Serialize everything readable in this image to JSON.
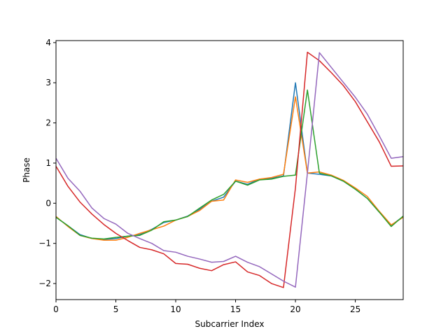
{
  "chart_data": {
    "type": "line",
    "title": "",
    "xlabel": "Subcarrier Index",
    "ylabel": "Phase",
    "xlim": [
      0,
      29
    ],
    "ylim": [
      -2.4,
      4.05
    ],
    "xticks": [
      0,
      5,
      10,
      15,
      20,
      25
    ],
    "yticks": [
      -2,
      -1,
      0,
      1,
      2,
      3,
      4
    ],
    "grid": false,
    "legend": "none",
    "x": [
      0,
      1,
      2,
      3,
      4,
      5,
      6,
      7,
      8,
      9,
      10,
      11,
      12,
      13,
      14,
      15,
      16,
      17,
      18,
      19,
      20,
      21,
      22,
      23,
      24,
      25,
      26,
      27,
      28,
      29
    ],
    "series": [
      {
        "color": "#1f77b4",
        "values": [
          -0.35,
          -0.56,
          -0.78,
          -0.88,
          -0.9,
          -0.88,
          -0.82,
          -0.78,
          -0.65,
          -0.48,
          -0.42,
          -0.32,
          -0.15,
          0.05,
          0.15,
          0.55,
          0.47,
          0.6,
          0.62,
          0.68,
          3.0,
          0.75,
          0.72,
          0.68,
          0.55,
          0.35,
          0.12,
          -0.22,
          -0.55,
          -0.33
        ]
      },
      {
        "color": "#ff7f0e",
        "values": [
          -0.33,
          -0.58,
          -0.8,
          -0.88,
          -0.92,
          -0.92,
          -0.85,
          -0.75,
          -0.66,
          -0.57,
          -0.42,
          -0.33,
          -0.18,
          0.05,
          0.08,
          0.58,
          0.52,
          0.6,
          0.64,
          0.72,
          2.65,
          0.75,
          0.78,
          0.7,
          0.57,
          0.38,
          0.17,
          -0.2,
          -0.54,
          -0.35
        ]
      },
      {
        "color": "#2ca02c",
        "values": [
          -0.35,
          -0.56,
          -0.8,
          -0.87,
          -0.89,
          -0.85,
          -0.82,
          -0.8,
          -0.67,
          -0.46,
          -0.42,
          -0.33,
          -0.12,
          0.08,
          0.22,
          0.55,
          0.45,
          0.58,
          0.6,
          0.67,
          0.7,
          2.82,
          0.75,
          0.68,
          0.55,
          0.35,
          0.12,
          -0.22,
          -0.58,
          -0.32
        ]
      },
      {
        "color": "#d62728",
        "values": [
          0.92,
          0.42,
          0.03,
          -0.27,
          -0.53,
          -0.75,
          -0.93,
          -1.1,
          -1.16,
          -1.26,
          -1.5,
          -1.52,
          -1.62,
          -1.68,
          -1.53,
          -1.46,
          -1.71,
          -1.8,
          -2.0,
          -2.1,
          0.38,
          3.76,
          3.55,
          3.25,
          2.93,
          2.53,
          2.03,
          1.53,
          0.92,
          0.93
        ]
      },
      {
        "color": "#9467bd",
        "values": [
          1.12,
          0.62,
          0.3,
          -0.12,
          -0.38,
          -0.52,
          -0.75,
          -0.88,
          -1.0,
          -1.18,
          -1.22,
          -1.32,
          -1.39,
          -1.47,
          -1.45,
          -1.32,
          -1.47,
          -1.58,
          -1.76,
          -1.94,
          -2.09,
          0.75,
          3.75,
          3.38,
          3.01,
          2.64,
          2.22,
          1.68,
          1.12,
          1.16
        ]
      }
    ]
  }
}
